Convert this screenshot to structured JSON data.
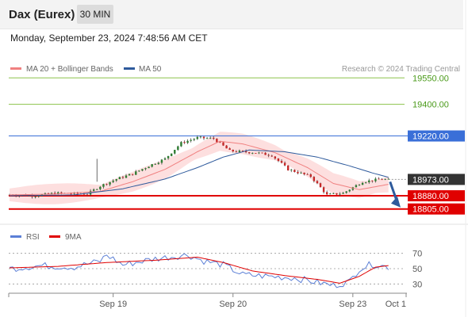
{
  "header": {
    "instrument": "Dax (Eurex)",
    "timeframe": "30 MIN",
    "datetime": "Monday, September 23, 2024 7:48:56 AM CET"
  },
  "legend": {
    "items": [
      {
        "label": "MA 20 + Bollinger Bands",
        "color": "#f08080"
      },
      {
        "label": "MA 50",
        "color": "#2e5a9c"
      }
    ],
    "credit": "Research © 2024 Trading Central"
  },
  "rsi_legend": {
    "items": [
      {
        "label": "RSI",
        "color": "#5b7fd6"
      },
      {
        "label": "9MA",
        "color": "#e00000"
      }
    ]
  },
  "colors": {
    "support": "#e00000",
    "resistance": "#3a6fd8",
    "target": "#8bc34a",
    "target_text": "#4a9a1a",
    "price_box": "#333333",
    "arrow": "#2e5a9c",
    "bollinger_fill": "#fcd4d4"
  },
  "chart_data": {
    "type": "candlestick",
    "price_axis": {
      "min": 18700,
      "max": 19700,
      "levels": [
        {
          "value": 19550.0,
          "label": "19550.00",
          "kind": "target"
        },
        {
          "value": 19400.0,
          "label": "19400.00",
          "kind": "target"
        },
        {
          "value": 19220.0,
          "label": "19220.00",
          "kind": "resistance"
        },
        {
          "value": 18973.0,
          "label": "18973.00",
          "kind": "last"
        },
        {
          "value": 18880.0,
          "label": "18880.00",
          "kind": "support"
        },
        {
          "value": 18805.0,
          "label": "18805.00",
          "kind": "support"
        }
      ]
    },
    "x_axis": {
      "labels": [
        {
          "label": "Sep 19",
          "bar": 32
        },
        {
          "label": "Sep 20",
          "bar": 69
        },
        {
          "label": "Sep 23",
          "bar": 106
        },
        {
          "label": "Oct 1",
          "bar": 123
        }
      ]
    },
    "bars": 120,
    "close_path": [
      [
        0,
        18885
      ],
      [
        8,
        18880
      ],
      [
        14,
        18895
      ],
      [
        24,
        18890
      ],
      [
        28,
        18935
      ],
      [
        33,
        18975
      ],
      [
        38,
        19005
      ],
      [
        43,
        19050
      ],
      [
        48,
        19090
      ],
      [
        53,
        19180
      ],
      [
        58,
        19210
      ],
      [
        63,
        19205
      ],
      [
        68,
        19135
      ],
      [
        76,
        19125
      ],
      [
        81,
        19110
      ],
      [
        86,
        19030
      ],
      [
        93,
        18990
      ],
      [
        98,
        18885
      ],
      [
        103,
        18895
      ],
      [
        109,
        18960
      ],
      [
        115,
        18975
      ],
      [
        117,
        18970
      ]
    ],
    "ma20_path": [
      [
        0,
        18885
      ],
      [
        14,
        18890
      ],
      [
        28,
        18905
      ],
      [
        38,
        18960
      ],
      [
        48,
        19030
      ],
      [
        58,
        19130
      ],
      [
        65,
        19190
      ],
      [
        72,
        19175
      ],
      [
        82,
        19125
      ],
      [
        92,
        19040
      ],
      [
        100,
        18950
      ],
      [
        108,
        18915
      ],
      [
        117,
        18945
      ]
    ],
    "ma50_path": [
      [
        0,
        18880
      ],
      [
        20,
        18885
      ],
      [
        35,
        18920
      ],
      [
        48,
        18975
      ],
      [
        58,
        19040
      ],
      [
        66,
        19100
      ],
      [
        74,
        19140
      ],
      [
        85,
        19130
      ],
      [
        95,
        19100
      ],
      [
        105,
        19050
      ],
      [
        112,
        19010
      ],
      [
        117,
        18985
      ]
    ],
    "bollinger_width": 45,
    "rsi": {
      "ticks": [
        70,
        50,
        30
      ],
      "min": 20,
      "max": 80,
      "rsi_path": [
        [
          0,
          50
        ],
        [
          10,
          54
        ],
        [
          20,
          52
        ],
        [
          28,
          60
        ],
        [
          30,
          68
        ],
        [
          35,
          55
        ],
        [
          45,
          63
        ],
        [
          55,
          68
        ],
        [
          60,
          60
        ],
        [
          66,
          55
        ],
        [
          72,
          42
        ],
        [
          80,
          40
        ],
        [
          88,
          38
        ],
        [
          95,
          32
        ],
        [
          100,
          28
        ],
        [
          105,
          33
        ],
        [
          108,
          50
        ],
        [
          112,
          56
        ],
        [
          117,
          52
        ]
      ],
      "ma_path": [
        [
          0,
          51
        ],
        [
          15,
          53
        ],
        [
          30,
          58
        ],
        [
          45,
          61
        ],
        [
          58,
          65
        ],
        [
          66,
          58
        ],
        [
          75,
          47
        ],
        [
          85,
          41
        ],
        [
          95,
          36
        ],
        [
          102,
          31
        ],
        [
          108,
          40
        ],
        [
          113,
          52
        ],
        [
          117,
          54
        ]
      ]
    }
  }
}
